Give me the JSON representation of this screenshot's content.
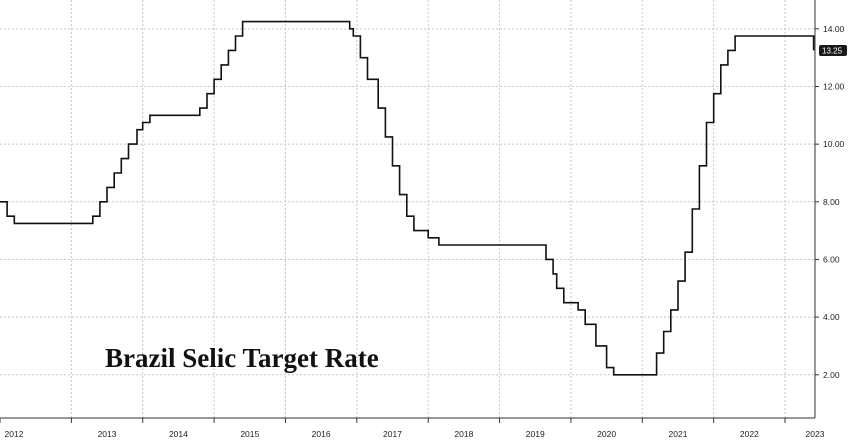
{
  "chart_data": {
    "type": "line",
    "title": "Brazil Selic Target Rate",
    "xlabel": "",
    "ylabel": "",
    "x_ticks": [
      "2012",
      "2013",
      "2014",
      "2015",
      "2016",
      "2017",
      "2018",
      "2019",
      "2020",
      "2021",
      "2022",
      "2023"
    ],
    "y_ticks": [
      "2.00",
      "4.00",
      "6.00",
      "8.00",
      "10.00",
      "12.00",
      "14.00"
    ],
    "xlim": [
      2012.0,
      2023.42
    ],
    "ylim": [
      0.5,
      15.0
    ],
    "grid": true,
    "y_axis_side": "right",
    "last_value_label": "13.25",
    "series": [
      {
        "step": true,
        "x": [
          2012.0,
          2012.1,
          2012.2,
          2012.35,
          2012.5,
          2012.6,
          2012.8,
          2013.3,
          2013.4,
          2013.5,
          2013.6,
          2013.7,
          2013.8,
          2013.92,
          2014.0,
          2014.1,
          2014.2,
          2014.3,
          2014.35,
          2014.8,
          2014.9,
          2015.0,
          2015.1,
          2015.2,
          2015.3,
          2015.4,
          2015.5,
          2015.6,
          2016.8,
          2016.9,
          2016.95,
          2017.05,
          2017.15,
          2017.3,
          2017.4,
          2017.5,
          2017.6,
          2017.7,
          2017.8,
          2017.9,
          2018.0,
          2018.15,
          2018.25,
          2019.55,
          2019.65,
          2019.75,
          2019.8,
          2019.9,
          2019.95,
          2020.1,
          2020.2,
          2020.35,
          2020.5,
          2020.6,
          2020.65,
          2021.2,
          2021.3,
          2021.4,
          2021.5,
          2021.6,
          2021.7,
          2021.8,
          2021.9,
          2022.0,
          2022.1,
          2022.2,
          2022.3,
          2022.4,
          2022.5,
          2022.6,
          2023.3,
          2023.4
        ],
        "y": [
          8.0,
          7.5,
          7.25,
          7.25,
          7.25,
          7.25,
          7.25,
          7.5,
          8.0,
          8.5,
          9.0,
          9.5,
          10.0,
          10.5,
          10.75,
          11.0,
          11.0,
          11.0,
          11.0,
          11.25,
          11.75,
          12.25,
          12.75,
          13.25,
          13.75,
          14.25,
          14.25,
          14.25,
          14.25,
          14.0,
          13.75,
          13.0,
          12.25,
          11.25,
          10.25,
          9.25,
          8.25,
          7.5,
          7.0,
          7.0,
          6.75,
          6.5,
          6.5,
          6.5,
          6.0,
          5.5,
          5.0,
          4.5,
          4.5,
          4.25,
          3.75,
          3.0,
          2.25,
          2.0,
          2.0,
          2.75,
          3.5,
          4.25,
          5.25,
          6.25,
          7.75,
          9.25,
          10.75,
          11.75,
          12.75,
          13.25,
          13.75,
          13.75,
          13.75,
          13.75,
          13.75,
          13.25
        ]
      }
    ]
  },
  "colors": {
    "line": "#111111",
    "grid": "#c8c8c8",
    "axis": "#333333",
    "last_label_bg": "#1a1a1a"
  }
}
